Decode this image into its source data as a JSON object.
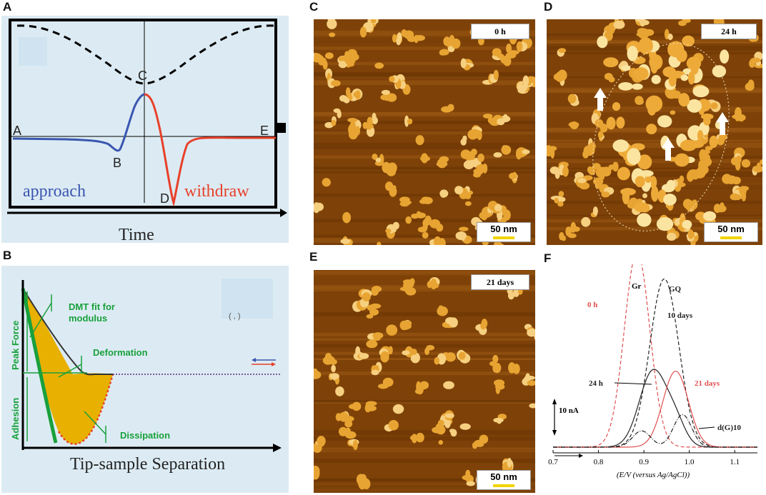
{
  "panels": {
    "A": {
      "label": "A",
      "points": [
        "A",
        "B",
        "C",
        "D",
        "E"
      ],
      "approach": "approach",
      "withdraw": "withdraw",
      "xlabel": "Time",
      "colors": {
        "approach": "#3a56b0",
        "withdraw": "#e8402a",
        "background": "#dcebf3"
      }
    },
    "B": {
      "label": "B",
      "dmt_line1": "DMT fit for",
      "dmt_line2": "modulus",
      "deformation": "Deformation",
      "peak_force": "Peak Force",
      "adhesion": "Adhesion",
      "dissipation": "Dissipation",
      "xlabel": "Tip-sample Separation",
      "colors": {
        "label": "#19a03c",
        "fill": "#e8b000",
        "background": "#dcebf3"
      }
    },
    "C": {
      "label": "C",
      "time": "0 h",
      "scale": "50 nm"
    },
    "D": {
      "label": "D",
      "time": "24 h",
      "scale": "50 nm"
    },
    "E": {
      "label": "E",
      "time": "21 days",
      "scale": "50 nm"
    },
    "F": {
      "label": "F"
    }
  },
  "chart_data": {
    "type": "line",
    "xlabel": "(E/V (versus Ag/AgCl))",
    "xlim": [
      0.7,
      1.15
    ],
    "x_ticks": [
      "0.7",
      "0.8",
      "0.9",
      "1.0",
      "1.1"
    ],
    "y_scale_label": "10 nA",
    "annotations": {
      "gr": "Gr",
      "gq": "GQ",
      "dg10": "d(G)10"
    },
    "series": [
      {
        "name": "0 h",
        "style": "dashed",
        "color": "#e05050",
        "peaks": [
          {
            "x": 0.885,
            "height": 36,
            "width": 0.028
          }
        ]
      },
      {
        "name": "10 days",
        "style": "dashed",
        "color": "#222222",
        "peaks": [
          {
            "x": 0.945,
            "height": 31,
            "width": 0.032
          }
        ]
      },
      {
        "name": "24 h",
        "style": "solid",
        "color": "#222222",
        "peaks": [
          {
            "x": 0.92,
            "height": 14,
            "width": 0.03
          },
          {
            "x": 0.97,
            "height": 4,
            "width": 0.022
          }
        ]
      },
      {
        "name": "21 days",
        "style": "solid",
        "color": "#e05050",
        "peaks": [
          {
            "x": 0.97,
            "height": 14,
            "width": 0.028
          }
        ]
      },
      {
        "name": "d(G)10",
        "style": "dashdot",
        "color": "#222222",
        "peaks": [
          {
            "x": 0.985,
            "height": 6,
            "width": 0.02
          },
          {
            "x": 0.895,
            "height": 3,
            "width": 0.02
          }
        ]
      }
    ]
  }
}
